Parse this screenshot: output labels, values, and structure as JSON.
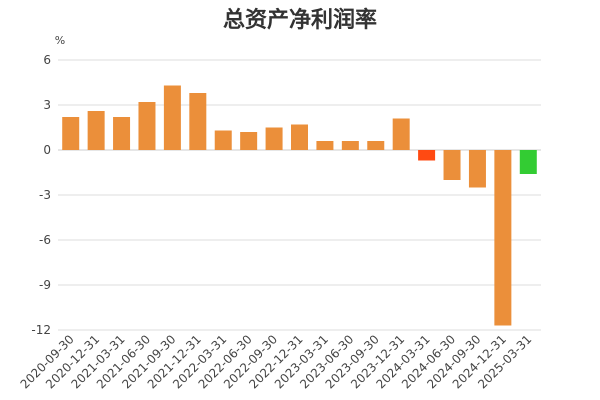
{
  "chart_data": {
    "type": "bar",
    "title": "总资产净利润率",
    "ylabel": "%",
    "xlabel": "",
    "ylim": [
      -12,
      6
    ],
    "yticks": [
      6,
      3,
      0,
      -3,
      -6,
      -9,
      -12
    ],
    "grid": true,
    "categories": [
      "2020-09-30",
      "2020-12-31",
      "2021-03-31",
      "2021-06-30",
      "2021-09-30",
      "2021-12-31",
      "2022-03-31",
      "2022-06-30",
      "2022-09-30",
      "2022-12-31",
      "2023-03-31",
      "2023-06-30",
      "2023-09-30",
      "2023-12-31",
      "2024-03-31",
      "2024-06-30",
      "2024-09-30",
      "2024-12-31",
      "2025-03-31"
    ],
    "values": [
      2.2,
      2.6,
      2.2,
      3.2,
      4.3,
      3.8,
      1.3,
      1.2,
      1.5,
      1.7,
      0.6,
      0.6,
      0.6,
      2.1,
      -0.7,
      -2.0,
      -2.5,
      -11.7,
      -1.6
    ],
    "colors": [
      "#EB8F3A",
      "#EB8F3A",
      "#EB8F3A",
      "#EB8F3A",
      "#EB8F3A",
      "#EB8F3A",
      "#EB8F3A",
      "#EB8F3A",
      "#EB8F3A",
      "#EB8F3A",
      "#EB8F3A",
      "#EB8F3A",
      "#EB8F3A",
      "#EB8F3A",
      "#FF4A12",
      "#EB8F3A",
      "#EB8F3A",
      "#EB8F3A",
      "#33CC33"
    ]
  }
}
